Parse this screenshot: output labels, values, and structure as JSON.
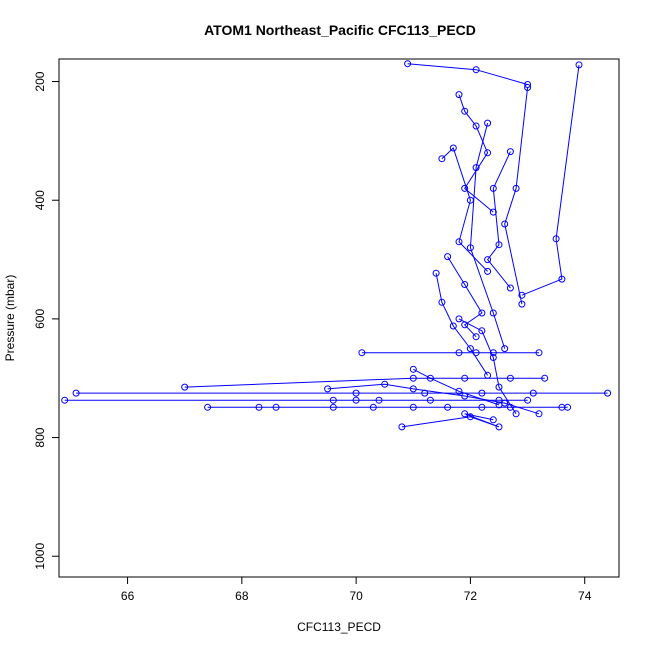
{
  "chart_data": {
    "type": "line",
    "title": "ATOM1 Northeast_Pacific CFC113_PECD",
    "xlabel": "CFC113_PECD",
    "ylabel": "Pressure (mbar)",
    "xlim": [
      64.8,
      74.6
    ],
    "ylim": [
      1035,
      162
    ],
    "y_reversed": true,
    "x_ticks": [
      66,
      68,
      70,
      72,
      74
    ],
    "y_ticks": [
      200,
      400,
      600,
      800,
      1000
    ],
    "color": "#0000ff",
    "marker": "open-circle",
    "grid": false,
    "legend": "none",
    "profiles": [
      {
        "x": [
          70.9,
          72.1,
          73.0
        ],
        "y": [
          170,
          180,
          205
        ]
      },
      {
        "x": [
          73.9,
          73.5,
          73.6,
          72.9
        ],
        "y": [
          172,
          465,
          533,
          560
        ]
      },
      {
        "x": [
          71.8,
          71.9,
          72.1,
          72.3,
          71.9,
          72.4
        ],
        "y": [
          222,
          250,
          275,
          320,
          380,
          420
        ]
      },
      {
        "x": [
          71.5,
          71.7,
          72.0,
          71.8,
          72.3
        ],
        "y": [
          330,
          312,
          400,
          470,
          520
        ]
      },
      {
        "x": [
          72.3,
          72.1,
          72.0,
          72.4,
          72.6
        ],
        "y": [
          270,
          345,
          480,
          590,
          650
        ]
      },
      {
        "x": [
          72.7,
          72.4,
          72.5,
          72.3,
          72.7
        ],
        "y": [
          318,
          380,
          475,
          500,
          548
        ]
      },
      {
        "x": [
          73.0,
          72.8,
          72.6,
          72.9
        ],
        "y": [
          210,
          380,
          440,
          575
        ]
      },
      {
        "x": [
          71.6,
          71.9,
          72.2,
          71.9,
          72.1
        ],
        "y": [
          495,
          542,
          590,
          610,
          630
        ]
      },
      {
        "x": [
          71.4,
          71.5,
          71.7,
          72.0,
          72.3
        ],
        "y": [
          523,
          572,
          612,
          650,
          695
        ]
      },
      {
        "x": [
          71.0,
          71.3,
          71.8,
          72.5
        ],
        "y": [
          685,
          700,
          722,
          745
        ]
      },
      {
        "x": [
          70.1,
          71.8,
          72.1,
          72.4,
          73.2
        ],
        "y": [
          657,
          657,
          657,
          657,
          657
        ]
      },
      {
        "x": [
          67.0,
          71.0,
          71.9,
          72.7,
          73.3
        ],
        "y": [
          715,
          700,
          700,
          700,
          700
        ]
      },
      {
        "x": [
          65.1,
          70.0,
          71.2,
          72.2,
          73.1,
          74.4
        ],
        "y": [
          725,
          725,
          725,
          725,
          725,
          725
        ]
      },
      {
        "x": [
          64.9,
          69.6,
          70.0,
          70.4,
          71.3,
          72.5,
          73.0
        ],
        "y": [
          737,
          737,
          737,
          737,
          737,
          737,
          737
        ]
      },
      {
        "x": [
          67.4,
          68.3,
          68.6,
          69.6,
          70.3,
          71.0,
          71.6,
          72.2,
          72.7,
          73.6,
          73.7
        ],
        "y": [
          749,
          749,
          749,
          749,
          749,
          749,
          749,
          749,
          749,
          749,
          749
        ]
      },
      {
        "x": [
          69.5,
          70.5,
          71.0,
          71.9,
          72.6,
          73.2
        ],
        "y": [
          718,
          710,
          718,
          730,
          742,
          760
        ]
      },
      {
        "x": [
          70.8,
          72.0,
          72.5,
          71.9,
          72.4
        ],
        "y": [
          782,
          765,
          782,
          760,
          770
        ]
      },
      {
        "x": [
          71.8,
          72.2,
          72.4,
          72.5,
          72.8
        ],
        "y": [
          600,
          620,
          665,
          715,
          760
        ]
      }
    ]
  }
}
